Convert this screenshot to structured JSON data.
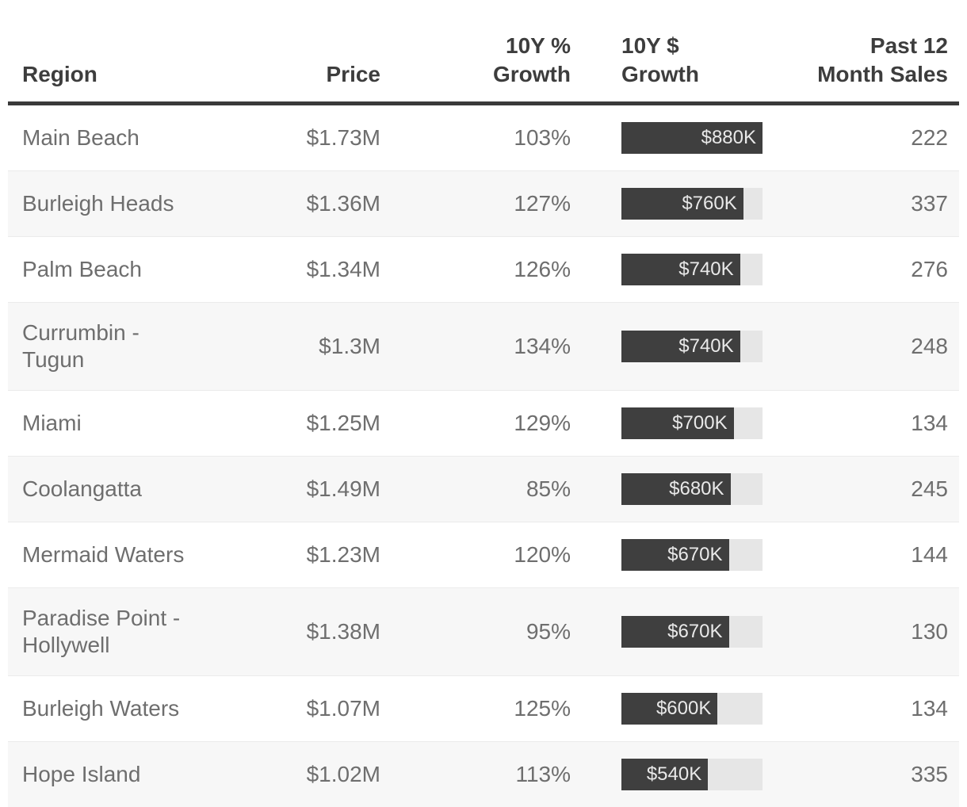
{
  "table": {
    "columns": [
      {
        "label": "Region",
        "align": "left"
      },
      {
        "label": "Price",
        "align": "right"
      },
      {
        "label": "10Y %\nGrowth",
        "align": "right"
      },
      {
        "label": "10Y $\nGrowth",
        "align": "left"
      },
      {
        "label": "Past 12\nMonth Sales",
        "align": "right"
      }
    ],
    "bar_max_value": 880,
    "rows": [
      {
        "region": "Main Beach",
        "price": "$1.73M",
        "pct_growth": "103%",
        "dollar_growth_label": "$880K",
        "dollar_growth_value": 880,
        "sales": "222"
      },
      {
        "region": "Burleigh Heads",
        "price": "$1.36M",
        "pct_growth": "127%",
        "dollar_growth_label": "$760K",
        "dollar_growth_value": 760,
        "sales": "337"
      },
      {
        "region": "Palm Beach",
        "price": "$1.34M",
        "pct_growth": "126%",
        "dollar_growth_label": "$740K",
        "dollar_growth_value": 740,
        "sales": "276"
      },
      {
        "region": "Currumbin - Tugun",
        "price": "$1.3M",
        "pct_growth": "134%",
        "dollar_growth_label": "$740K",
        "dollar_growth_value": 740,
        "sales": "248"
      },
      {
        "region": "Miami",
        "price": "$1.25M",
        "pct_growth": "129%",
        "dollar_growth_label": "$700K",
        "dollar_growth_value": 700,
        "sales": "134"
      },
      {
        "region": "Coolangatta",
        "price": "$1.49M",
        "pct_growth": "85%",
        "dollar_growth_label": "$680K",
        "dollar_growth_value": 680,
        "sales": "245"
      },
      {
        "region": "Mermaid Waters",
        "price": "$1.23M",
        "pct_growth": "120%",
        "dollar_growth_label": "$670K",
        "dollar_growth_value": 670,
        "sales": "144"
      },
      {
        "region": "Paradise Point - Hollywell",
        "price": "$1.38M",
        "pct_growth": "95%",
        "dollar_growth_label": "$670K",
        "dollar_growth_value": 670,
        "sales": "130"
      },
      {
        "region": "Burleigh Waters",
        "price": "$1.07M",
        "pct_growth": "125%",
        "dollar_growth_label": "$600K",
        "dollar_growth_value": 600,
        "sales": "134"
      },
      {
        "region": "Hope Island",
        "price": "$1.02M",
        "pct_growth": "113%",
        "dollar_growth_label": "$540K",
        "dollar_growth_value": 540,
        "sales": "335"
      }
    ],
    "colors": {
      "bar_fill": "#3f3f3f",
      "bar_track": "#e6e6e6",
      "row_stripe": "#f7f7f7",
      "header_text": "#3d3d3d",
      "body_text": "#6e6e6e",
      "header_border": "#3a3a3a",
      "bar_label_text": "#e9e9e9"
    }
  },
  "chart_data": {
    "type": "table",
    "title": "",
    "columns": [
      "Region",
      "Price",
      "10Y % Growth",
      "10Y $ Growth",
      "Past 12 Month Sales"
    ],
    "rows": [
      [
        "Main Beach",
        "$1.73M",
        "103%",
        "$880K",
        222
      ],
      [
        "Burleigh Heads",
        "$1.36M",
        "127%",
        "$760K",
        337
      ],
      [
        "Palm Beach",
        "$1.34M",
        "126%",
        "$740K",
        276
      ],
      [
        "Currumbin - Tugun",
        "$1.3M",
        "134%",
        "$740K",
        248
      ],
      [
        "Miami",
        "$1.25M",
        "129%",
        "$700K",
        134
      ],
      [
        "Coolangatta",
        "$1.49M",
        "85%",
        "$680K",
        245
      ],
      [
        "Mermaid Waters",
        "$1.23M",
        "120%",
        "$670K",
        144
      ],
      [
        "Paradise Point - Hollywell",
        "$1.38M",
        "95%",
        "$670K",
        130
      ],
      [
        "Burleigh Waters",
        "$1.07M",
        "125%",
        "$600K",
        134
      ],
      [
        "Hope Island",
        "$1.02M",
        "113%",
        "$540K",
        335
      ]
    ],
    "embedded_bar_chart": {
      "column": "10Y $ Growth",
      "values_thousands": [
        880,
        760,
        740,
        740,
        700,
        680,
        670,
        670,
        600,
        540
      ],
      "max_value_thousands": 880,
      "bar_style": "horizontal, dark fill on light track, value label right-aligned inside fill"
    }
  }
}
